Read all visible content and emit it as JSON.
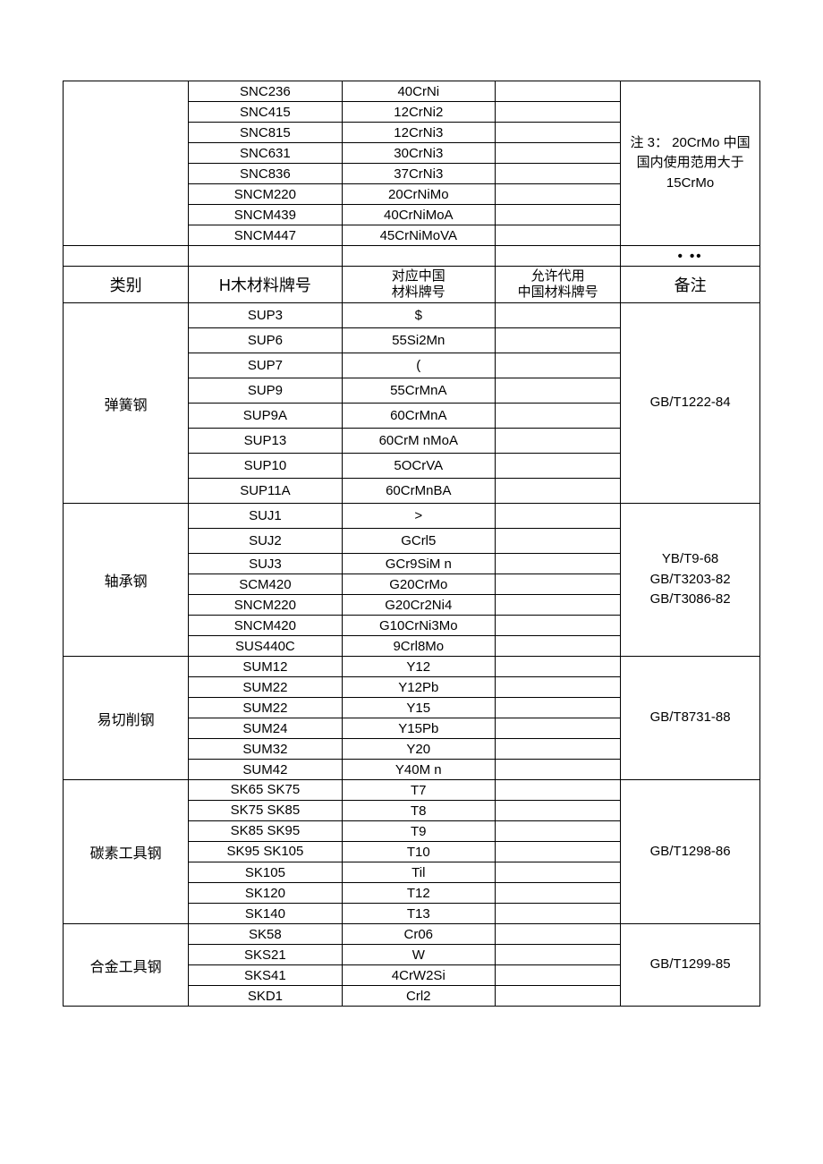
{
  "top_note": "注 3： 20CrMo 中国国内使用范用大于15CrMo",
  "top_rows": [
    {
      "jp": "SNC236",
      "cn": "40CrNi"
    },
    {
      "jp": "SNC415",
      "cn": "12CrNi2"
    },
    {
      "jp": "SNC815",
      "cn": "12CrNi3"
    },
    {
      "jp": "SNC631",
      "cn": "30CrNi3"
    },
    {
      "jp": "SNC836",
      "cn": "37CrNi3"
    },
    {
      "jp": "SNCM220",
      "cn": "20CrNiMo"
    },
    {
      "jp": "SNCM439",
      "cn": "40CrNiMoA"
    },
    {
      "jp": "SNCM447",
      "cn": "45CrNiMoVA"
    }
  ],
  "dots": "•  ••",
  "header": {
    "category": "类别",
    "jp_grade": "H木材料牌号",
    "cn_grade": "对应中国\n材料牌号",
    "allowed": "允许代用\n中国材料牌号",
    "remark": "备注"
  },
  "sections": [
    {
      "category": "弹簧钢",
      "remark": "GB/T1222-84",
      "tall": true,
      "rows": [
        {
          "jp": "SUP3",
          "cn": "$"
        },
        {
          "jp": "SUP6",
          "cn": "55Si2Mn"
        },
        {
          "jp": "SUP7",
          "cn": "("
        },
        {
          "jp": "SUP9",
          "cn": "55CrMnA"
        },
        {
          "jp": "SUP9A",
          "cn": "60CrMnA"
        },
        {
          "jp": "SUP13",
          "cn": "60CrM nMoA"
        },
        {
          "jp": "SUP10",
          "cn": "5OCrVA"
        },
        {
          "jp": "SUP11A",
          "cn": "60CrMnBA"
        }
      ]
    },
    {
      "category": "轴承钢",
      "remark": "YB/T9-68\nGB/T3203-82\nGB/T3086-82",
      "rows": [
        {
          "jp": "SUJ1",
          "cn": ">",
          "tall": true
        },
        {
          "jp": "SUJ2",
          "cn": "GCrl5",
          "tall": true
        },
        {
          "jp": "SUJ3",
          "cn": "GCr9SiM n"
        },
        {
          "jp": "SCM420",
          "cn": "G20CrMo"
        },
        {
          "jp": "SNCM220",
          "cn": "G20Cr2Ni4"
        },
        {
          "jp": "SNCM420",
          "cn": "G10CrNi3Mo"
        },
        {
          "jp": "SUS440C",
          "cn": "9Crl8Mo"
        }
      ]
    },
    {
      "category": "易切削钢",
      "remark": "GB/T8731-88",
      "rows": [
        {
          "jp": "SUM12",
          "cn": "Y12"
        },
        {
          "jp": "SUM22",
          "cn": "Y12Pb"
        },
        {
          "jp": "SUM22",
          "cn": "Y15"
        },
        {
          "jp": "SUM24",
          "cn": "Y15Pb"
        },
        {
          "jp": "SUM32",
          "cn": "Y20"
        },
        {
          "jp": "SUM42",
          "cn": "Y40M n"
        }
      ]
    },
    {
      "category": "碳素工具钢",
      "remark": "GB/T1298-86",
      "rows": [
        {
          "jp": "SK65    SK75",
          "cn": "T7",
          "clip": true
        },
        {
          "jp": "SK75    SK85",
          "cn": "T8",
          "clip": true
        },
        {
          "jp": "SK85    SK95",
          "cn": "T9",
          "clip": true
        },
        {
          "jp": "SK95    SK105",
          "cn": "T10",
          "clip": true
        },
        {
          "jp": "SK105",
          "cn": "Til"
        },
        {
          "jp": "SK120",
          "cn": "T12"
        },
        {
          "jp": "SK140",
          "cn": "T13"
        }
      ]
    },
    {
      "category": "合金工具钢",
      "remark": "GB/T1299-85",
      "rows": [
        {
          "jp": "SK58",
          "cn": "Cr06"
        },
        {
          "jp": "SKS21",
          "cn": "W"
        },
        {
          "jp": "SKS41",
          "cn": "4CrW2Si"
        },
        {
          "jp": "SKD1",
          "cn": "Crl2"
        }
      ]
    }
  ]
}
